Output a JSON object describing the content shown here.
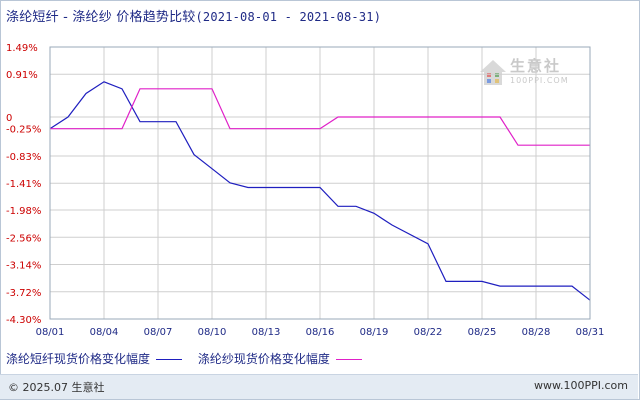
{
  "title": {
    "main": "涤纶短纤 - 涤纶纱 价格趋势比较",
    "range": "(2021-08-01 - 2021-08-31)"
  },
  "watermark": {
    "name": "生意社",
    "url": "100PPI.COM"
  },
  "legend": {
    "series1": "涤纶短纤现货价格变化幅度",
    "series2": "涤纶纱现货价格变化幅度"
  },
  "footer": {
    "left": "© 2025.07 生意社",
    "right": "www.100PPI.com"
  },
  "colors": {
    "series1": "#1f1fbf",
    "series2": "#e020c8",
    "ytick": "#cc0000",
    "grid": "#cfcfcf"
  },
  "chart_data": {
    "type": "line",
    "title": "涤纶短纤 - 涤纶纱 价格趋势比较",
    "xlabel": "",
    "ylabel": "",
    "grid": true,
    "legend_position": "bottom",
    "x_ticks": [
      "08/01",
      "08/04",
      "08/07",
      "08/10",
      "08/13",
      "08/16",
      "08/19",
      "08/22",
      "08/25",
      "08/28",
      "08/31"
    ],
    "y_ticks": [
      "1.49%",
      "0.91%",
      "0",
      "-0.25%",
      "-0.83%",
      "-1.41%",
      "-1.98%",
      "-2.56%",
      "-3.14%",
      "-3.72%",
      "-4.30%"
    ],
    "y_tick_values": [
      1.49,
      0.91,
      0,
      -0.25,
      -0.83,
      -1.41,
      -1.98,
      -2.56,
      -3.14,
      -3.72,
      -4.3
    ],
    "ylim": [
      -4.3,
      1.49
    ],
    "x_range": [
      1,
      31
    ],
    "series": [
      {
        "name": "涤纶短纤现货价格变化幅度",
        "color": "#1f1fbf",
        "x": [
          1,
          2,
          3,
          4,
          5,
          6,
          7,
          8,
          9,
          10,
          11,
          12,
          16,
          17,
          18,
          19,
          20,
          22,
          23,
          25,
          26,
          30,
          31
        ],
        "y": [
          -0.25,
          0.0,
          0.5,
          0.75,
          0.6,
          -0.1,
          -0.1,
          -0.1,
          -0.8,
          -1.1,
          -1.4,
          -1.5,
          -1.5,
          -1.9,
          -1.9,
          -2.05,
          -2.3,
          -2.7,
          -3.5,
          -3.5,
          -3.6,
          -3.6,
          -3.9
        ]
      },
      {
        "name": "涤纶纱现货价格变化幅度",
        "color": "#e020c8",
        "x": [
          1,
          5,
          6,
          10,
          11,
          16,
          17,
          26,
          27,
          31
        ],
        "y": [
          -0.25,
          -0.25,
          0.6,
          0.6,
          -0.25,
          -0.25,
          0.0,
          0.0,
          -0.6,
          -0.6
        ]
      }
    ]
  }
}
